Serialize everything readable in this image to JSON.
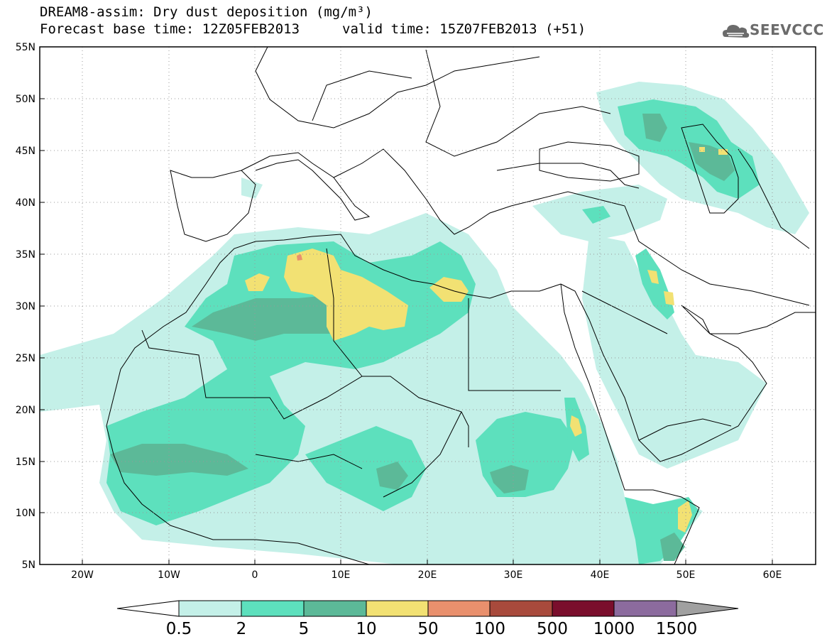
{
  "title": {
    "line1": "DREAM8-assim: Dry dust deposition (mg/m³)",
    "line2": "Forecast base time: 12Z05FEB2013",
    "line2b": "valid time: 15Z07FEB2013 (+51)"
  },
  "logo": {
    "text": "SEEVCCC",
    "icon": "cloud-icon"
  },
  "axes": {
    "lat_labels": [
      "55N",
      "50N",
      "45N",
      "40N",
      "35N",
      "30N",
      "25N",
      "20N",
      "15N",
      "10N",
      "5N"
    ],
    "lon_labels": [
      "20W",
      "10W",
      "0",
      "10E",
      "20E",
      "30E",
      "40E",
      "50E",
      "60E"
    ]
  },
  "colorbar": {
    "labels": [
      "0.5",
      "2",
      "5",
      "10",
      "50",
      "100",
      "500",
      "1000",
      "1500"
    ],
    "colors": [
      "#c4f0e8",
      "#5de0bd",
      "#5cb998",
      "#f2e173",
      "#e9906d",
      "#a84a3c",
      "#7a0e2c",
      "#8c6b9e"
    ],
    "over_color": "#a0a0a0",
    "under_color": "#ffffff"
  },
  "map": {
    "projection": "lat-lon",
    "lon_range": [
      -25,
      65
    ],
    "lat_range": [
      5,
      55
    ],
    "field_colors": {
      "c1": "#c4f0e8",
      "c2": "#5de0bd",
      "c3": "#5cb998",
      "c4": "#f2e173",
      "c5": "#e9906d"
    }
  }
}
